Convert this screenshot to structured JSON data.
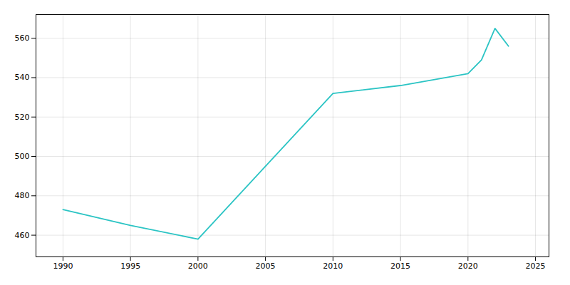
{
  "chart_data": {
    "type": "line",
    "x": [
      1990,
      1995,
      2000,
      2010,
      2015,
      2020,
      2021,
      2022,
      2023
    ],
    "values": [
      473,
      465,
      458,
      532,
      536,
      542,
      549,
      565,
      556
    ],
    "color": "#2BC4C4",
    "xlim": [
      1988,
      2026
    ],
    "ylim": [
      449,
      572
    ],
    "xticks": [
      1990,
      1995,
      2000,
      2005,
      2010,
      2015,
      2020,
      2025
    ],
    "yticks": [
      460,
      480,
      500,
      520,
      540,
      560
    ],
    "grid": true
  }
}
